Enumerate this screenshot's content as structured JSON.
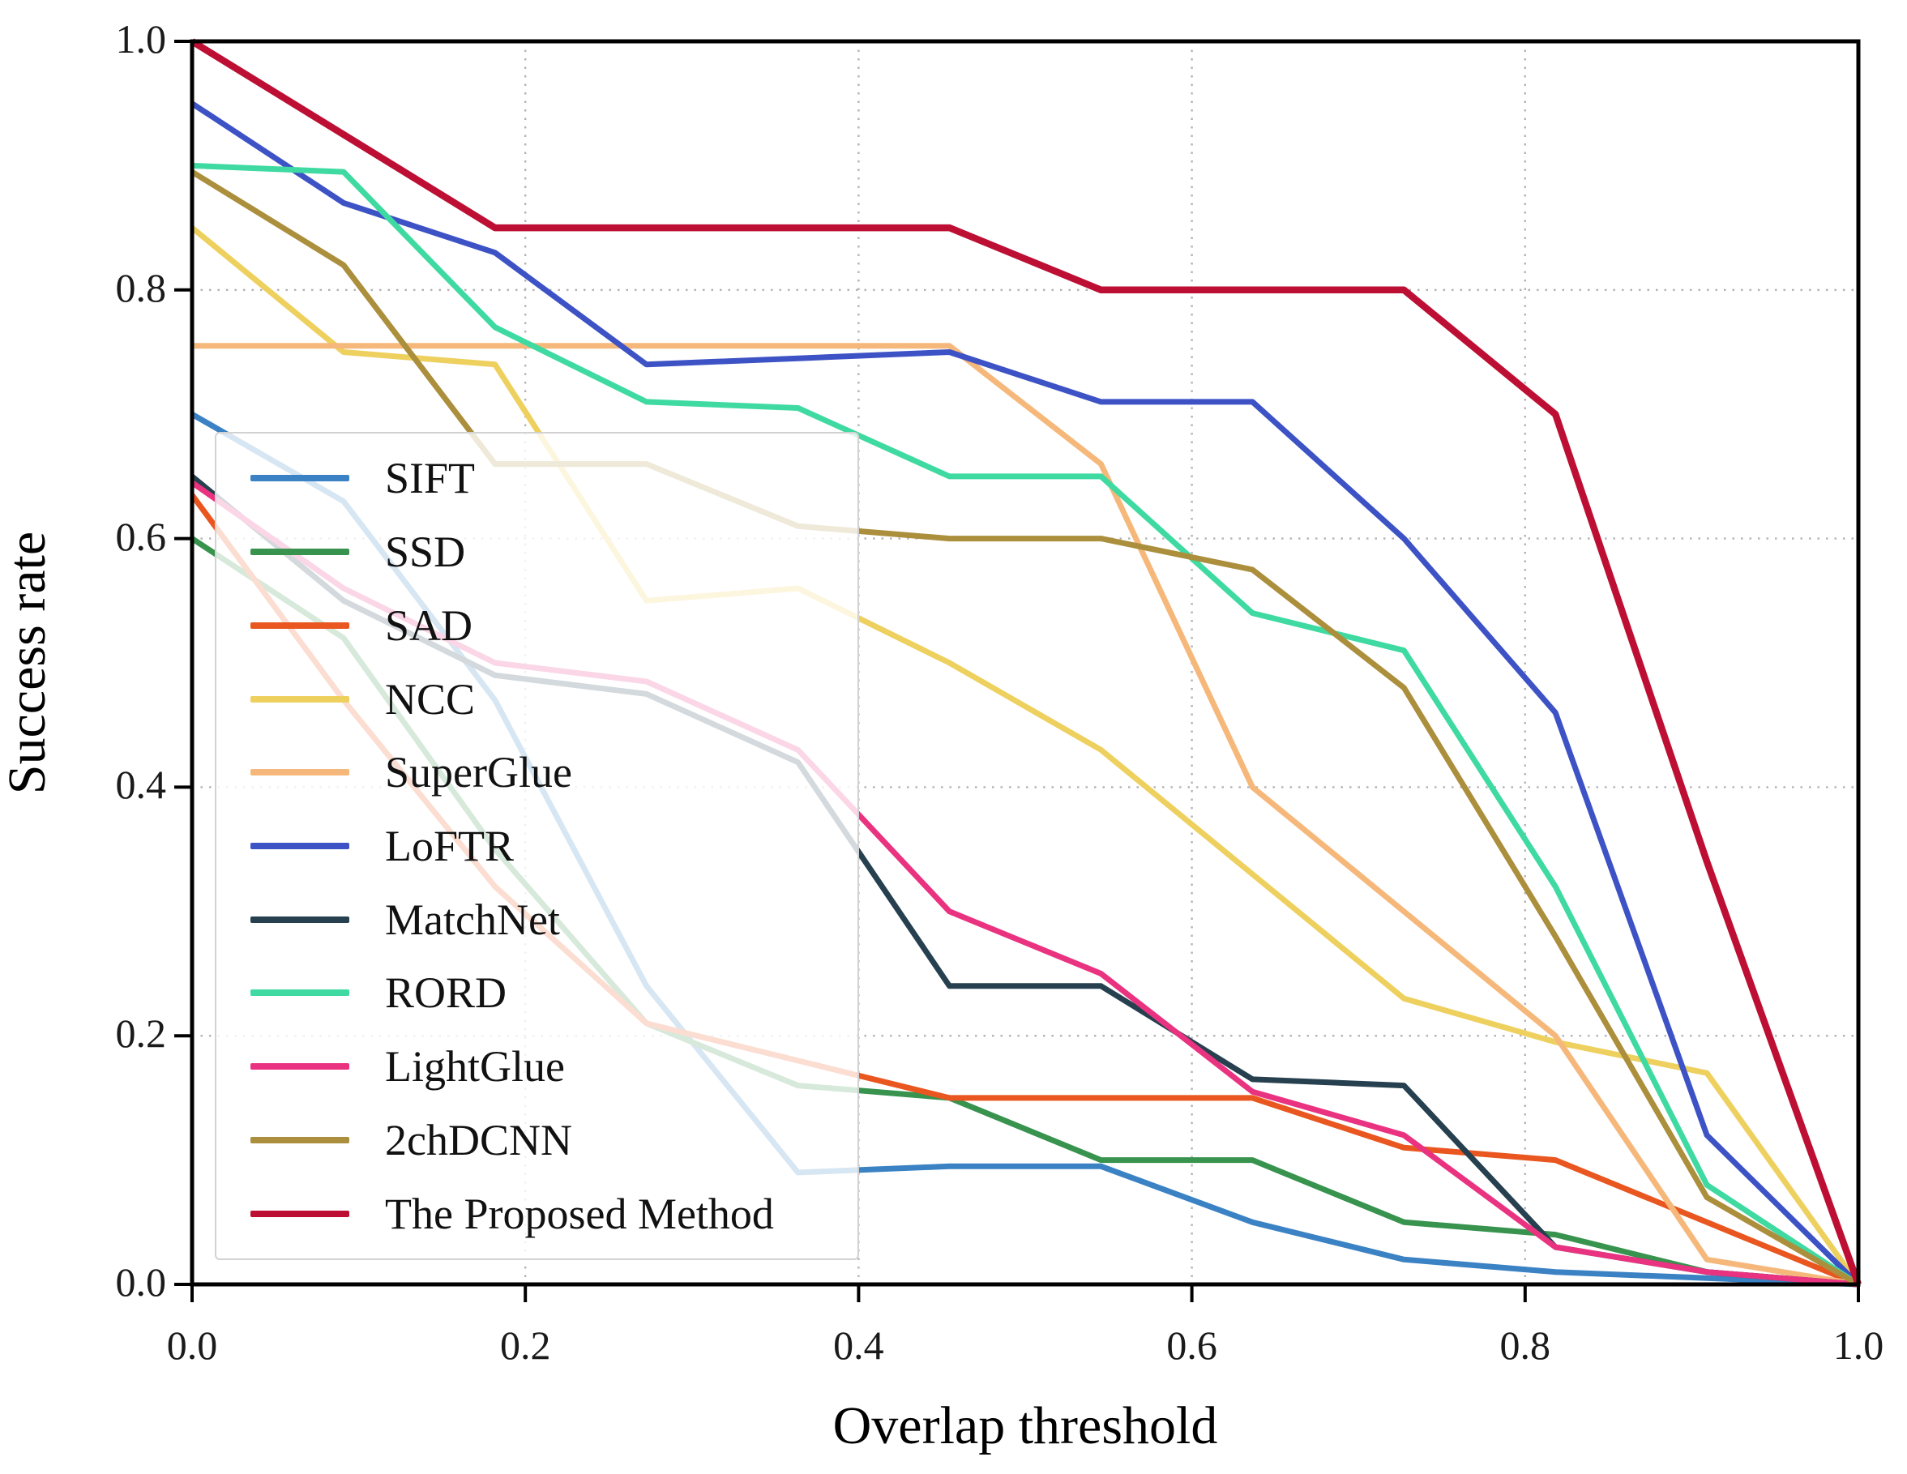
{
  "figure": {
    "background": "#ffffff",
    "plot_border_color": "#000000",
    "grid_color": "#b3b3b3"
  },
  "chart_data": {
    "type": "line",
    "title": "",
    "xlabel": "Overlap threshold",
    "ylabel": "Success rate",
    "xlim": [
      0.0,
      1.0
    ],
    "ylim": [
      0.0,
      1.0
    ],
    "grid": "dotted gridlines at every 0.2 on both axes",
    "legend_position": "inside upper-left, semi-transparent white box",
    "x_tick_labels": [
      "0.0",
      "0.2",
      "0.4",
      "0.6",
      "0.8",
      "1.0"
    ],
    "y_tick_labels": [
      "0.0",
      "0.2",
      "0.4",
      "0.6",
      "0.8",
      "1.0"
    ],
    "x_ticks": [
      0.0,
      0.2,
      0.4,
      0.6,
      0.8,
      1.0
    ],
    "y_ticks": [
      0.0,
      0.2,
      0.4,
      0.6,
      0.8,
      1.0
    ],
    "x": [
      0.0,
      0.0909,
      0.1818,
      0.2727,
      0.3636,
      0.4545,
      0.5455,
      0.6364,
      0.7273,
      0.8182,
      0.9091,
      1.0
    ],
    "series": [
      {
        "name": "SIFT",
        "color": "#3b82c4",
        "values": [
          0.7,
          0.63,
          0.47,
          0.24,
          0.09,
          0.095,
          0.095,
          0.05,
          0.02,
          0.01,
          0.005,
          0.0
        ]
      },
      {
        "name": "SSD",
        "color": "#37934d",
        "values": [
          0.6,
          0.52,
          0.35,
          0.21,
          0.16,
          0.15,
          0.1,
          0.1,
          0.05,
          0.04,
          0.01,
          0.0
        ]
      },
      {
        "name": "SAD",
        "color": "#e9561f",
        "values": [
          0.635,
          0.47,
          0.32,
          0.21,
          0.18,
          0.15,
          0.15,
          0.15,
          0.11,
          0.1,
          0.05,
          0.0
        ]
      },
      {
        "name": "NCC",
        "color": "#eed05e",
        "values": [
          0.85,
          0.75,
          0.74,
          0.55,
          0.56,
          0.5,
          0.43,
          0.33,
          0.23,
          0.195,
          0.17,
          0.0
        ]
      },
      {
        "name": "SuperGlue",
        "color": "#f6b87a",
        "values": [
          0.755,
          0.755,
          0.755,
          0.755,
          0.755,
          0.755,
          0.66,
          0.4,
          0.3,
          0.2,
          0.02,
          0.0
        ]
      },
      {
        "name": "LoFTR",
        "color": "#3d53c5",
        "values": [
          0.95,
          0.87,
          0.83,
          0.74,
          0.745,
          0.75,
          0.71,
          0.71,
          0.6,
          0.46,
          0.12,
          0.0
        ]
      },
      {
        "name": "MatchNet",
        "color": "#27404f",
        "values": [
          0.65,
          0.55,
          0.49,
          0.475,
          0.42,
          0.24,
          0.24,
          0.165,
          0.16,
          0.03,
          0.01,
          0.0
        ]
      },
      {
        "name": "RORD",
        "color": "#3edaa2",
        "values": [
          0.9,
          0.895,
          0.77,
          0.71,
          0.705,
          0.65,
          0.65,
          0.54,
          0.51,
          0.32,
          0.08,
          0.0
        ]
      },
      {
        "name": "LightGlue",
        "color": "#ea3380",
        "values": [
          0.645,
          0.56,
          0.5,
          0.485,
          0.43,
          0.3,
          0.25,
          0.155,
          0.12,
          0.03,
          0.01,
          0.0
        ]
      },
      {
        "name": "2chDCNN",
        "color": "#ab8f3c",
        "values": [
          0.895,
          0.82,
          0.66,
          0.66,
          0.61,
          0.6,
          0.6,
          0.575,
          0.48,
          0.28,
          0.07,
          0.0
        ]
      },
      {
        "name": "The Proposed Method",
        "color": "#bd0f34",
        "values": [
          1.0,
          0.925,
          0.85,
          0.85,
          0.85,
          0.85,
          0.8,
          0.8,
          0.8,
          0.7,
          0.34,
          0.0
        ]
      }
    ]
  }
}
